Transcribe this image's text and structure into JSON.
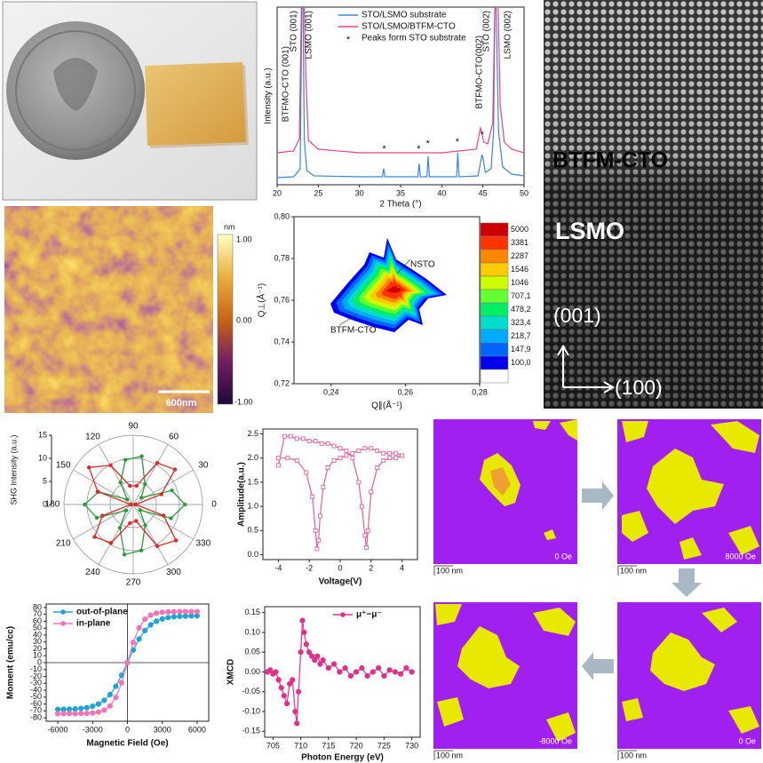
{
  "chart_data": [
    {
      "type": "line",
      "xlabel": "2 Theta (°)",
      "ylabel": "Intensity (a.u.)",
      "xlim": [
        20,
        50
      ],
      "xticks": [
        20,
        25,
        30,
        35,
        40,
        45,
        50
      ],
      "ylim": [
        0,
        10
      ],
      "legend": "upper center",
      "annotations": [
        "BTFMO-CTO (001)",
        "STO (001)",
        "LSMO (001)",
        "BTFMO-CTO(002)",
        "STO (002)",
        "LSMO (002)"
      ],
      "series": [
        {
          "name": "STO/LSMO substrate",
          "color": "#3a86d6",
          "x": [
            20,
            22,
            22.8,
            23.0,
            23.15,
            23.3,
            23.6,
            24.5,
            30,
            32.8,
            32.95,
            33.1,
            37.1,
            37.25,
            37.4,
            38.2,
            38.35,
            38.5,
            41.8,
            41.95,
            42.1,
            44.4,
            44.9,
            45.05,
            45.3,
            46.0,
            46.3,
            46.45,
            46.6,
            46.9,
            47.4,
            48.5,
            50
          ],
          "values": [
            0.4,
            0.45,
            0.9,
            10,
            10,
            2.5,
            0.8,
            0.5,
            0.45,
            0.45,
            0.9,
            0.45,
            0.45,
            1.2,
            0.45,
            0.45,
            1.6,
            0.45,
            0.45,
            1.8,
            0.45,
            0.5,
            1.7,
            1.4,
            0.7,
            0.9,
            3,
            10,
            10,
            3,
            1.0,
            0.6,
            0.5
          ]
        },
        {
          "name": "STO/LSMO/BTFM-CTO",
          "color": "#e8408a",
          "x": [
            20,
            22,
            22.7,
            22.95,
            23.1,
            23.3,
            23.5,
            23.8,
            25,
            30,
            40,
            44.2,
            44.7,
            44.85,
            45.1,
            45.6,
            46.2,
            46.45,
            46.6,
            46.85,
            47.1,
            47.6,
            48.5,
            50
          ],
          "values": [
            1.8,
            1.9,
            2.6,
            10,
            10,
            10,
            6,
            2.5,
            2.0,
            1.8,
            1.8,
            2.0,
            3.2,
            3.0,
            2.4,
            2.3,
            3.5,
            10,
            10,
            10,
            4.5,
            2.4,
            2.0,
            1.8
          ]
        },
        {
          "name": "Peaks form STO substrate",
          "color": "#222222",
          "marker": "*",
          "line": false,
          "x": [
            33,
            37.2,
            38.3,
            41.9,
            44.9
          ],
          "values": [
            2.1,
            2.1,
            2.4,
            2.5,
            2.9
          ]
        }
      ]
    },
    {
      "type": "contour",
      "xlabel": "Q∥(Å⁻¹)",
      "ylabel": "Q⊥(Å⁻¹)",
      "xlim": [
        0.23,
        0.28
      ],
      "xticks": [
        {
          "value": 0.24,
          "label": "0,24"
        },
        {
          "value": 0.26,
          "label": "0,26"
        },
        {
          "value": 0.28,
          "label": "0,28"
        }
      ],
      "ylim": [
        0.72,
        0.8
      ],
      "yticks": [
        {
          "value": 0.72,
          "label": "0,72"
        },
        {
          "value": 0.74,
          "label": "0,74"
        },
        {
          "value": 0.76,
          "label": "0,76"
        },
        {
          "value": 0.78,
          "label": "0,78"
        },
        {
          "value": 0.8,
          "label": "0,80"
        }
      ],
      "annotations": [
        "NSTO",
        "BTFM-CTO"
      ],
      "levels": [
        5000,
        3381,
        2287,
        1546,
        1046,
        {
          "value": 707.1,
          "label": "707,1"
        },
        {
          "value": 478.2,
          "label": "478,2"
        },
        {
          "value": 323.4,
          "label": "323,4"
        },
        {
          "value": 218.7,
          "label": "218,7"
        },
        {
          "value": 147.9,
          "label": "147,9"
        },
        {
          "value": 100.0,
          "label": "100,0"
        }
      ],
      "colors": [
        "#cc0000",
        "#ff3300",
        "#ff8800",
        "#ffcc00",
        "#ccff00",
        "#66ff33",
        "#00ee66",
        "#00ddcc",
        "#00aaff",
        "#0066ff",
        "#0000ee"
      ]
    },
    {
      "type": "polar",
      "ylabel": "SHG Intensity (a.u.)",
      "theta": [
        0,
        20,
        40,
        60,
        80,
        100,
        120,
        140,
        160,
        180,
        200,
        220,
        240,
        260,
        280,
        300,
        320,
        340
      ],
      "angle_ticks": [
        0,
        30,
        60,
        90,
        120,
        150,
        180,
        210,
        240,
        270,
        300,
        330
      ],
      "rlim": [
        0,
        15
      ],
      "rticks": [
        0,
        5,
        10,
        15
      ],
      "series": [
        {
          "color": "#2e9a3a",
          "values": [
            11.2,
            8.9,
            2.3,
            5.1,
            10.6,
            9.8,
            5.5,
            1.7,
            8.0,
            10.5,
            8.4,
            2.0,
            5.8,
            11.0,
            10.1,
            5.2,
            1.9,
            8.7
          ]
        },
        {
          "color": "#e02828",
          "values": [
            0.5,
            6.5,
            11.8,
            10.4,
            4.1,
            4.1,
            9.8,
            12.5,
            8.2,
            0.5,
            7.1,
            10.9,
            9.6,
            4.1,
            3.6,
            10.4,
            12.1,
            7.0
          ]
        }
      ]
    },
    {
      "type": "line",
      "xlabel": "Voltage(V)",
      "ylabel": "Amplitude(a.u.)",
      "xlim": [
        -5,
        5
      ],
      "xticks": [
        -4,
        -2,
        0,
        2,
        4
      ],
      "ylim": [
        -0.1,
        2.6
      ],
      "yticks": [
        {
          "value": 0,
          "label": "0.0"
        },
        0.5,
        {
          "value": 1,
          "label": "1.0"
        },
        1.5,
        {
          "value": 2,
          "label": "2.0"
        },
        2.5
      ],
      "series": [
        {
          "color": "#e0609a",
          "marker": "square",
          "x": [
            -4,
            -3.6,
            -3.2,
            -2.8,
            -2.4,
            -2,
            -1.6,
            -1.2,
            -0.8,
            -0.4,
            0,
            0.4,
            0.8,
            1.2,
            1.4,
            1.6,
            1.7,
            1.8,
            2,
            2.4,
            2.8,
            3.2,
            3.6,
            4,
            4,
            3.6,
            3.2,
            2.8,
            2.4,
            2,
            1.6,
            1.2,
            0.8,
            0.4,
            0,
            -0.4,
            -0.8,
            -1.1,
            -1.3,
            -1.4,
            -1.5,
            -1.6,
            -1.8,
            -2.2,
            -2.8,
            -3.4,
            -4
          ],
          "values": [
            1.85,
            2.45,
            2.45,
            2.4,
            2.4,
            2.35,
            2.35,
            2.3,
            2.3,
            2.25,
            2.2,
            2.15,
            2.0,
            1.5,
            1.0,
            0.4,
            0.15,
            0.5,
            1.3,
            1.8,
            1.95,
            2.0,
            2.0,
            2.05,
            2.05,
            2.1,
            2.1,
            2.1,
            2.15,
            2.2,
            2.2,
            2.15,
            2.1,
            2.05,
            2.0,
            1.95,
            1.8,
            1.4,
            0.8,
            0.3,
            0.12,
            0.5,
            1.2,
            1.7,
            1.95,
            2.0,
            2.0
          ]
        }
      ]
    },
    {
      "type": "line",
      "xlabel": "Magnetic Field (Oe)",
      "ylabel": "Moment (emu/cc)",
      "zero_lines": true,
      "xlim": [
        -7000,
        7000
      ],
      "xticks": [
        -6000,
        -3000,
        0,
        3000,
        6000
      ],
      "ylim": [
        -85,
        85
      ],
      "yticks": [
        -80,
        -70,
        -60,
        -50,
        -40,
        -30,
        -20,
        -10,
        0,
        10,
        20,
        30,
        40,
        50,
        60,
        70,
        80
      ],
      "legend": "upper left",
      "x": [
        -6000,
        -5500,
        -5000,
        -4500,
        -4000,
        -3500,
        -3000,
        -2500,
        -2000,
        -1500,
        -1000,
        -500,
        0,
        500,
        1000,
        1500,
        2000,
        2500,
        3000,
        3500,
        4000,
        4500,
        5000,
        5500,
        6000
      ],
      "series": [
        {
          "name": "out-of-plane",
          "color": "#1fa3d5",
          "marker": "circle",
          "values": [
            -67.8,
            -67.7,
            -67.5,
            -67.1,
            -66.4,
            -65.3,
            -63.3,
            -60.0,
            -54.7,
            -46.4,
            -34.3,
            -18.4,
            0,
            18.4,
            34.3,
            46.4,
            54.7,
            60.0,
            63.3,
            65.3,
            66.4,
            67.1,
            67.5,
            67.7,
            67.8
          ]
        },
        {
          "name": "in-plane",
          "color": "#f572b8",
          "marker": "circle",
          "values": [
            -74,
            -74,
            -74,
            -74,
            -73.8,
            -73.6,
            -73.0,
            -71.7,
            -68.9,
            -62.8,
            -50.5,
            -29.2,
            0,
            29.2,
            50.5,
            62.8,
            68.9,
            71.7,
            73.0,
            73.6,
            73.8,
            74,
            74,
            74,
            74
          ]
        }
      ]
    },
    {
      "type": "line",
      "xlabel": "Photon Energy (eV)",
      "ylabel": "XMCD",
      "xlim": [
        703.5,
        731.5
      ],
      "xticks": [
        705,
        710,
        715,
        720,
        725,
        730
      ],
      "ylim": [
        -0.165,
        0.165
      ],
      "yticks": [
        -0.15,
        {
          "value": -0.1,
          "label": "-0.10"
        },
        -0.05,
        {
          "value": 0,
          "label": "0.00"
        },
        0.05,
        {
          "value": 0.1,
          "label": "0.10"
        },
        0.15
      ],
      "legend": "upper right",
      "series": [
        {
          "name": "μ⁺−μ⁻",
          "color": "#e0308a",
          "marker": "circle",
          "x": [
            704,
            704.5,
            705,
            705.5,
            706,
            706.5,
            707,
            707.5,
            708,
            708.5,
            709,
            709.3,
            709.6,
            710,
            710.3,
            710.6,
            711,
            711.5,
            712,
            712.5,
            713,
            713.5,
            714,
            715,
            716,
            717,
            718,
            719,
            720,
            721,
            722,
            723,
            724,
            725,
            726,
            727,
            728,
            729,
            730
          ],
          "values": [
            0.0,
            0.005,
            -0.005,
            0.0,
            -0.02,
            -0.04,
            -0.06,
            -0.08,
            -0.03,
            -0.02,
            -0.1,
            -0.13,
            -0.05,
            0.05,
            0.13,
            0.1,
            0.07,
            0.05,
            0.04,
            0.03,
            0.04,
            0.02,
            0.03,
            0.01,
            0.02,
            0.0,
            0.01,
            -0.01,
            0.0,
            0.01,
            -0.01,
            0.0,
            0.01,
            -0.01,
            0.005,
            0.0,
            -0.005,
            0.01,
            0.0
          ]
        }
      ]
    }
  ],
  "tem": {
    "labels": [
      "BTFM-CTO",
      "LSMO",
      "(001)",
      "(100)"
    ]
  },
  "afm": {
    "colorbar_unit": "nm",
    "colorbar_labels": [
      "1.00",
      "0.00",
      "-1.00"
    ],
    "scale_bar": "600nm"
  },
  "mfm": {
    "panels": [
      {
        "field": "0 Oe",
        "scale_bar": "100 nm"
      },
      {
        "field": "8000 Oe",
        "scale_bar": "100 nm"
      },
      {
        "field": "-8000 Oe",
        "scale_bar": "100 nm"
      },
      {
        "field": "0 Oe",
        "scale_bar": "100 nm"
      }
    ]
  }
}
